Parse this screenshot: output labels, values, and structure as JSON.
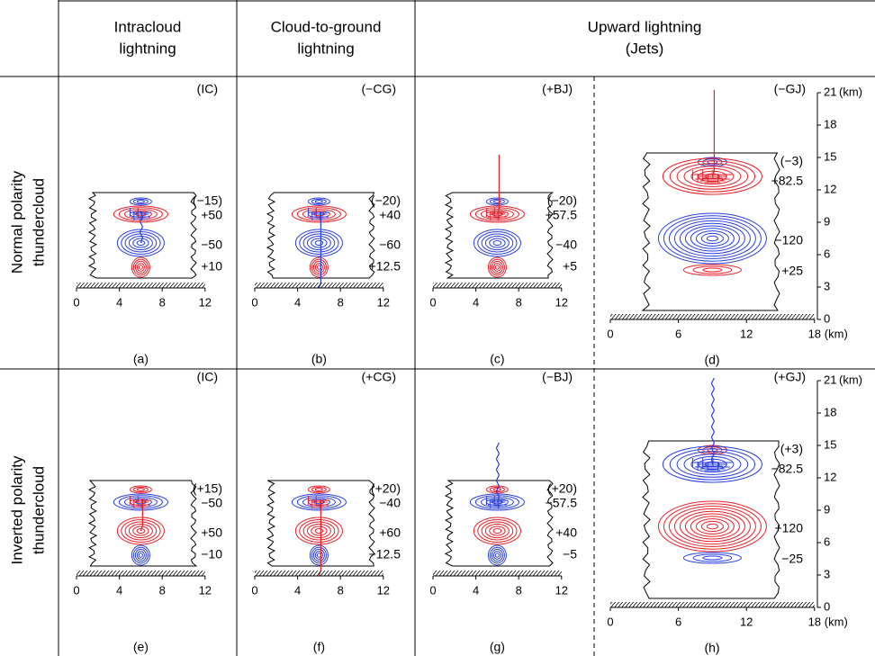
{
  "header": {
    "columns": [
      {
        "lines": [
          "Intracloud",
          "lightning"
        ]
      },
      {
        "lines": [
          "Cloud-to-ground",
          "lightning"
        ]
      },
      {
        "lines": [
          "Upward lightning",
          "(Jets)"
        ]
      }
    ]
  },
  "rows": [
    {
      "lines": [
        "Normal polarity",
        "thundercloud"
      ]
    },
    {
      "lines": [
        "Inverted polarity",
        "thundercloud"
      ]
    }
  ],
  "panels": [
    {
      "tag": "(IC)",
      "caption": "(a)",
      "xticks": [
        0,
        4,
        8,
        12
      ],
      "charges": [
        {
          "label": "(−15)",
          "color": "#2a3fe0"
        },
        {
          "label": "+50",
          "color": "#e8202a"
        },
        {
          "label": "−50",
          "color": "#2a3fe0"
        },
        {
          "label": "+10",
          "color": "#e8202a"
        }
      ]
    },
    {
      "tag": "(−CG)",
      "caption": "(b)",
      "xticks": [
        0,
        4,
        8,
        12
      ],
      "charges": [
        {
          "label": "(−20)",
          "color": "#2a3fe0"
        },
        {
          "label": "+40",
          "color": "#e8202a"
        },
        {
          "label": "−60",
          "color": "#2a3fe0"
        },
        {
          "label": "+12.5",
          "color": "#e8202a"
        }
      ]
    },
    {
      "tag": "(+BJ)",
      "caption": "(c)",
      "xticks": [
        0,
        4,
        8,
        12
      ],
      "charges": [
        {
          "label": "(−20)",
          "color": "#2a3fe0"
        },
        {
          "label": "+57.5",
          "color": "#e8202a"
        },
        {
          "label": "−40",
          "color": "#2a3fe0"
        },
        {
          "label": "+5",
          "color": "#e8202a"
        }
      ]
    },
    {
      "tag": "(−GJ)",
      "caption": "(d)",
      "xticks": [
        0,
        6,
        12,
        18
      ],
      "yticks": [
        0,
        3,
        6,
        9,
        12,
        15,
        18,
        21
      ],
      "unit": "(km)",
      "charges": [
        {
          "label": "(−3)",
          "color": "#2a3fe0"
        },
        {
          "label": "+82.5",
          "color": "#e8202a"
        },
        {
          "label": "−120",
          "color": "#2a3fe0"
        },
        {
          "label": "+25",
          "color": "#e8202a"
        }
      ]
    },
    {
      "tag": "(IC)",
      "caption": "(e)",
      "xticks": [
        0,
        4,
        8,
        12
      ],
      "charges": [
        {
          "label": "(+15)",
          "color": "#e8202a"
        },
        {
          "label": "−50",
          "color": "#2a3fe0"
        },
        {
          "label": "+50",
          "color": "#e8202a"
        },
        {
          "label": "−10",
          "color": "#2a3fe0"
        }
      ]
    },
    {
      "tag": "(+CG)",
      "caption": "(f)",
      "xticks": [
        0,
        4,
        8,
        12
      ],
      "charges": [
        {
          "label": "(+20)",
          "color": "#e8202a"
        },
        {
          "label": "−40",
          "color": "#2a3fe0"
        },
        {
          "label": "+60",
          "color": "#e8202a"
        },
        {
          "label": "−12.5",
          "color": "#2a3fe0"
        }
      ]
    },
    {
      "tag": "(−BJ)",
      "caption": "(g)",
      "xticks": [
        0,
        4,
        8,
        12
      ],
      "charges": [
        {
          "label": "(+20)",
          "color": "#e8202a"
        },
        {
          "label": "−57.5",
          "color": "#2a3fe0"
        },
        {
          "label": "+40",
          "color": "#e8202a"
        },
        {
          "label": "−5",
          "color": "#2a3fe0"
        }
      ]
    },
    {
      "tag": "(+GJ)",
      "caption": "(h)",
      "xticks": [
        0,
        6,
        12,
        18
      ],
      "yticks": [
        0,
        3,
        6,
        9,
        12,
        15,
        18,
        21
      ],
      "unit": "(km)",
      "charges": [
        {
          "label": "(+3)",
          "color": "#e8202a"
        },
        {
          "label": "−82.5",
          "color": "#2a3fe0"
        },
        {
          "label": "+120",
          "color": "#e8202a"
        },
        {
          "label": "−25",
          "color": "#2a3fe0"
        }
      ]
    }
  ]
}
